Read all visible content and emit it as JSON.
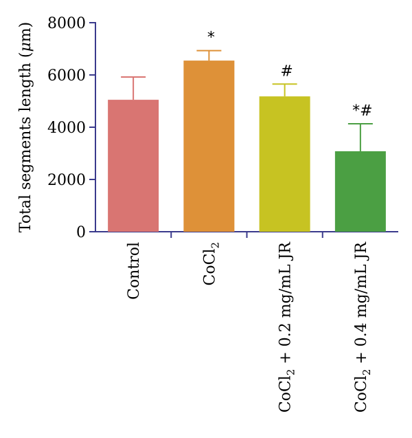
{
  "chart_data": {
    "type": "bar",
    "title": "",
    "xlabel": "",
    "ylabel": "Total segments length (μm)",
    "ylabel_parts": {
      "main": "Total segments length (",
      "unit": "μ",
      "tail": "m)"
    },
    "ylim": [
      0,
      8000
    ],
    "yticks": [
      0,
      2000,
      4000,
      6000,
      8000
    ],
    "yticks_labels": [
      "0",
      "2000",
      "4000",
      "6000",
      "8000"
    ],
    "categories": [
      "Control",
      "CoCl2",
      "CoCl2 + 0.2 mg/mL JR",
      "CoCl2 + 0.4 mg/mL JR"
    ],
    "category_labels": [
      {
        "pre": "Control",
        "sub": "",
        "post": ""
      },
      {
        "pre": "CoCl",
        "sub": "2",
        "post": ""
      },
      {
        "pre": "CoCl",
        "sub": "2",
        "post": " + 0.2 mg/mL JR"
      },
      {
        "pre": "CoCl",
        "sub": "2",
        "post": " + 0.4 mg/mL JR"
      }
    ],
    "values": [
      5050,
      6550,
      5180,
      3080
    ],
    "errors": [
      870,
      380,
      470,
      1050
    ],
    "significance": [
      "",
      "*",
      "#",
      "*#"
    ],
    "colors": [
      "#D97572",
      "#DE9138",
      "#C7C322",
      "#4B9F43"
    ],
    "axis_color": "#3A3A8C"
  }
}
